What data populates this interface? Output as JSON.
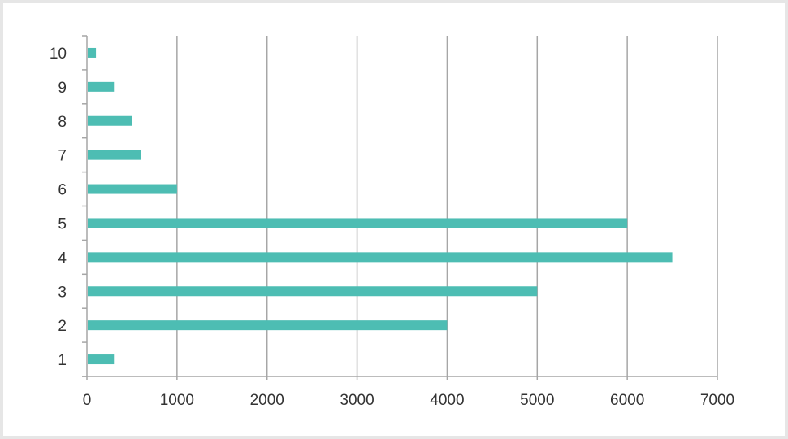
{
  "chart_data": {
    "type": "bar",
    "orientation": "horizontal",
    "categories": [
      "1",
      "2",
      "3",
      "4",
      "5",
      "6",
      "7",
      "8",
      "9",
      "10"
    ],
    "values": [
      300,
      4000,
      5000,
      6500,
      6000,
      1000,
      600,
      500,
      300,
      100
    ],
    "title": "",
    "xlabel": "",
    "ylabel": "",
    "xlim": [
      0,
      7000
    ],
    "xticks": [
      "0",
      "1000",
      "2000",
      "3000",
      "4000",
      "5000",
      "6000",
      "7000"
    ],
    "grid": "vertical",
    "legend": "none",
    "colors": {
      "bar": "#4dbdb3",
      "grid": "#a6a6a6",
      "axis": "#a6a6a6",
      "text": "#333333"
    }
  }
}
